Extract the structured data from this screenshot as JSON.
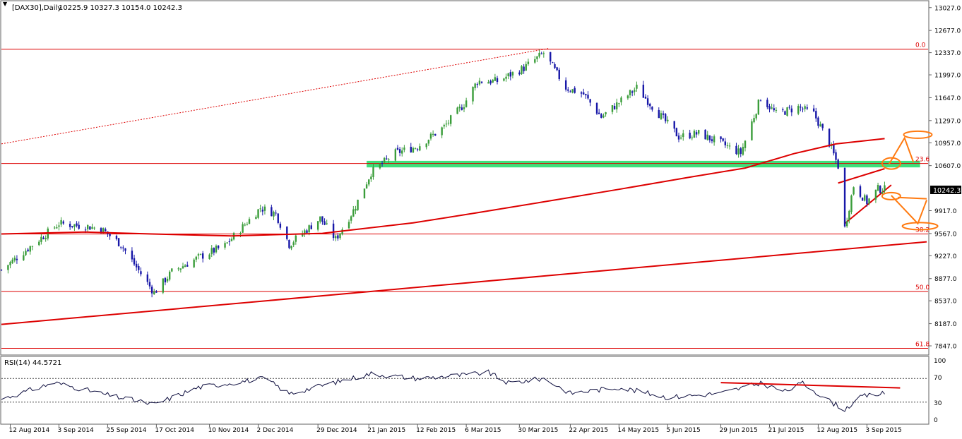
{
  "header": {
    "symbol": "[DAX30],Daily",
    "ohlc": "10225.9 10327.3 10154.0 10242.3"
  },
  "price_axis": {
    "ticks": [
      "13027.0",
      "12677.0",
      "12337.0",
      "11997.0",
      "11647.0",
      "11297.0",
      "10957.0",
      "10607.0",
      "9917.0",
      "9567.0",
      "9227.0",
      "8877.0",
      "8537.0",
      "8187.0",
      "7847.0"
    ],
    "last_price": "10242.3"
  },
  "fib_labels": [
    "0.0",
    "23.6",
    "38.2",
    "50.0",
    "61.8"
  ],
  "rsi": {
    "label": "RSI(14) 44.5721",
    "levels": [
      "100",
      "70",
      "30",
      "0"
    ]
  },
  "time_axis": {
    "labels": [
      "12 Aug 2014",
      "3 Sep 2014",
      "25 Sep 2014",
      "17 Oct 2014",
      "10 Nov 2014",
      "2 Dec 2014",
      "29 Dec 2014",
      "21 Jan 2015",
      "12 Feb 2015",
      "6 Mar 2015",
      "30 Mar 2015",
      "22 Apr 2015",
      "14 May 2015",
      "5 Jun 2015",
      "29 Jun 2015",
      "21 Jul 2015",
      "12 Aug 2015",
      "3 Sep 2015"
    ]
  },
  "colors": {
    "bull": "#3a9d3a",
    "bear": "#1818a8",
    "ma": "#dd0000",
    "fib": "#dd0000",
    "support_zone": "#3ee07a",
    "annotation": "#ff7a10",
    "rsi_line": "#101040"
  },
  "chart_data": {
    "type": "candlestick",
    "instrument": "DAX30",
    "timeframe": "Daily",
    "last_ohlc": {
      "open": 10225.9,
      "high": 10327.3,
      "low": 10154.0,
      "close": 10242.3
    },
    "ylim": [
      7750,
      13100
    ],
    "close_path": [
      {
        "date": "2014-08-08",
        "close": 9010
      },
      {
        "date": "2014-08-20",
        "close": 9340
      },
      {
        "date": "2014-09-03",
        "close": 9720
      },
      {
        "date": "2014-09-15",
        "close": 9680
      },
      {
        "date": "2014-09-22",
        "close": 9640
      },
      {
        "date": "2014-10-01",
        "close": 9400
      },
      {
        "date": "2014-10-08",
        "close": 9050
      },
      {
        "date": "2014-10-16",
        "close": 8660
      },
      {
        "date": "2014-10-24",
        "close": 8980
      },
      {
        "date": "2014-11-05",
        "close": 9200
      },
      {
        "date": "2014-11-17",
        "close": 9380
      },
      {
        "date": "2014-12-03",
        "close": 9960
      },
      {
        "date": "2014-12-10",
        "close": 9870
      },
      {
        "date": "2014-12-16",
        "close": 9400
      },
      {
        "date": "2014-12-30",
        "close": 9800
      },
      {
        "date": "2015-01-06",
        "close": 9480
      },
      {
        "date": "2015-01-14",
        "close": 9920
      },
      {
        "date": "2015-01-22",
        "close": 10500
      },
      {
        "date": "2015-02-02",
        "close": 10800
      },
      {
        "date": "2015-02-12",
        "close": 10900
      },
      {
        "date": "2015-02-24",
        "close": 11200
      },
      {
        "date": "2015-03-05",
        "close": 11550
      },
      {
        "date": "2015-03-11",
        "close": 11900
      },
      {
        "date": "2015-03-20",
        "close": 11900
      },
      {
        "date": "2015-04-01",
        "close": 12100
      },
      {
        "date": "2015-04-10",
        "close": 12330
      },
      {
        "date": "2015-04-20",
        "close": 11800
      },
      {
        "date": "2015-04-28",
        "close": 11700
      },
      {
        "date": "2015-05-06",
        "close": 11350
      },
      {
        "date": "2015-05-15",
        "close": 11600
      },
      {
        "date": "2015-05-22",
        "close": 11800
      },
      {
        "date": "2015-06-01",
        "close": 11400
      },
      {
        "date": "2015-06-10",
        "close": 11050
      },
      {
        "date": "2015-06-19",
        "close": 11100
      },
      {
        "date": "2015-06-29",
        "close": 10950
      },
      {
        "date": "2015-07-08",
        "close": 10800
      },
      {
        "date": "2015-07-17",
        "close": 11650
      },
      {
        "date": "2015-07-24",
        "close": 11400
      },
      {
        "date": "2015-08-03",
        "close": 11500
      },
      {
        "date": "2015-08-10",
        "close": 11400
      },
      {
        "date": "2015-08-17",
        "close": 10950
      },
      {
        "date": "2015-08-21",
        "close": 10600
      },
      {
        "date": "2015-08-24",
        "close": 9650
      },
      {
        "date": "2015-08-28",
        "close": 10300
      },
      {
        "date": "2015-09-03",
        "close": 10050
      },
      {
        "date": "2015-09-08",
        "close": 10250
      },
      {
        "date": "2015-09-11",
        "close": 10242.3
      }
    ],
    "moving_average": [
      {
        "date": "2014-08-08",
        "value": 9560
      },
      {
        "date": "2014-09-15",
        "value": 9590
      },
      {
        "date": "2014-10-15",
        "value": 9560
      },
      {
        "date": "2014-11-20",
        "value": 9530
      },
      {
        "date": "2014-12-31",
        "value": 9570
      },
      {
        "date": "2015-02-10",
        "value": 9730
      },
      {
        "date": "2015-03-10",
        "value": 9880
      },
      {
        "date": "2015-04-15",
        "value": 10080
      },
      {
        "date": "2015-05-15",
        "value": 10250
      },
      {
        "date": "2015-06-15",
        "value": 10430
      },
      {
        "date": "2015-07-10",
        "value": 10570
      },
      {
        "date": "2015-08-01",
        "value": 10790
      },
      {
        "date": "2015-08-20",
        "value": 10940
      },
      {
        "date": "2015-09-11",
        "value": 11020
      }
    ],
    "fibonacci": [
      {
        "label": "0.0",
        "value": 12390
      },
      {
        "label": "23.6",
        "value": 10640
      },
      {
        "label": "38.2",
        "value": 9560
      },
      {
        "label": "50.0",
        "value": 8680
      },
      {
        "label": "61.8",
        "value": 7810
      }
    ],
    "support_zone": {
      "from": 10580,
      "to": 10680
    },
    "trendlines": [
      {
        "from": {
          "date": "2014-08-08",
          "value": 8175
        },
        "to": {
          "date": "2015-09-30",
          "value": 9440
        }
      },
      {
        "from": {
          "date": "2014-08-08",
          "value": 10940
        },
        "to": {
          "date": "2015-04-12",
          "value": 12400
        },
        "style": "dotted"
      },
      {
        "from": {
          "date": "2015-08-21",
          "value": 10340
        },
        "to": {
          "date": "2015-09-11",
          "value": 10560
        }
      },
      {
        "from": {
          "date": "2015-08-24",
          "value": 9720
        },
        "to": {
          "date": "2015-09-14",
          "value": 10310
        }
      }
    ],
    "rsi_period": 14,
    "rsi_last": 44.5721,
    "rsi_ylim": [
      0,
      100
    ],
    "rsi_levels": [
      70,
      30
    ],
    "rsi": [
      {
        "date": "2014-08-08",
        "value": 35
      },
      {
        "date": "2014-09-01",
        "value": 63
      },
      {
        "date": "2014-09-25",
        "value": 42
      },
      {
        "date": "2014-10-16",
        "value": 26
      },
      {
        "date": "2014-11-05",
        "value": 55
      },
      {
        "date": "2014-12-05",
        "value": 70
      },
      {
        "date": "2014-12-16",
        "value": 44
      },
      {
        "date": "2015-01-02",
        "value": 60
      },
      {
        "date": "2015-01-22",
        "value": 78
      },
      {
        "date": "2015-02-12",
        "value": 70
      },
      {
        "date": "2015-03-06",
        "value": 76
      },
      {
        "date": "2015-03-16",
        "value": 80
      },
      {
        "date": "2015-03-25",
        "value": 62
      },
      {
        "date": "2015-04-10",
        "value": 70
      },
      {
        "date": "2015-04-22",
        "value": 45
      },
      {
        "date": "2015-05-14",
        "value": 55
      },
      {
        "date": "2015-06-05",
        "value": 38
      },
      {
        "date": "2015-06-29",
        "value": 45
      },
      {
        "date": "2015-07-17",
        "value": 62
      },
      {
        "date": "2015-07-28",
        "value": 48
      },
      {
        "date": "2015-08-05",
        "value": 62
      },
      {
        "date": "2015-08-17",
        "value": 32
      },
      {
        "date": "2015-08-24",
        "value": 18
      },
      {
        "date": "2015-09-01",
        "value": 40
      },
      {
        "date": "2015-09-11",
        "value": 44.6
      }
    ],
    "rsi_divergence_line": {
      "from": {
        "date": "2015-06-29",
        "value": 63
      },
      "to": {
        "date": "2015-09-18",
        "value": 54
      }
    }
  }
}
